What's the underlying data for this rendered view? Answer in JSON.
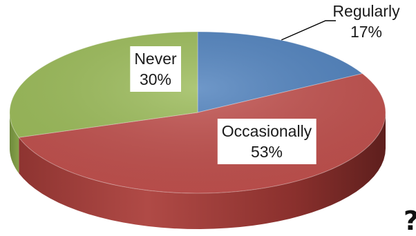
{
  "chart_data": {
    "type": "pie",
    "style": "3d-exploded-view",
    "slices": [
      {
        "label": "Regularly",
        "value": 17,
        "display": "17%",
        "color": "#4f81bd"
      },
      {
        "label": "Occasionally",
        "value": 53,
        "display": "53%",
        "color": "#c0504d"
      },
      {
        "label": "Never",
        "value": 30,
        "display": "30%",
        "color": "#9bbb59"
      }
    ],
    "legend": "none",
    "data_labels": "category-and-percent"
  },
  "clipped_text": "?"
}
